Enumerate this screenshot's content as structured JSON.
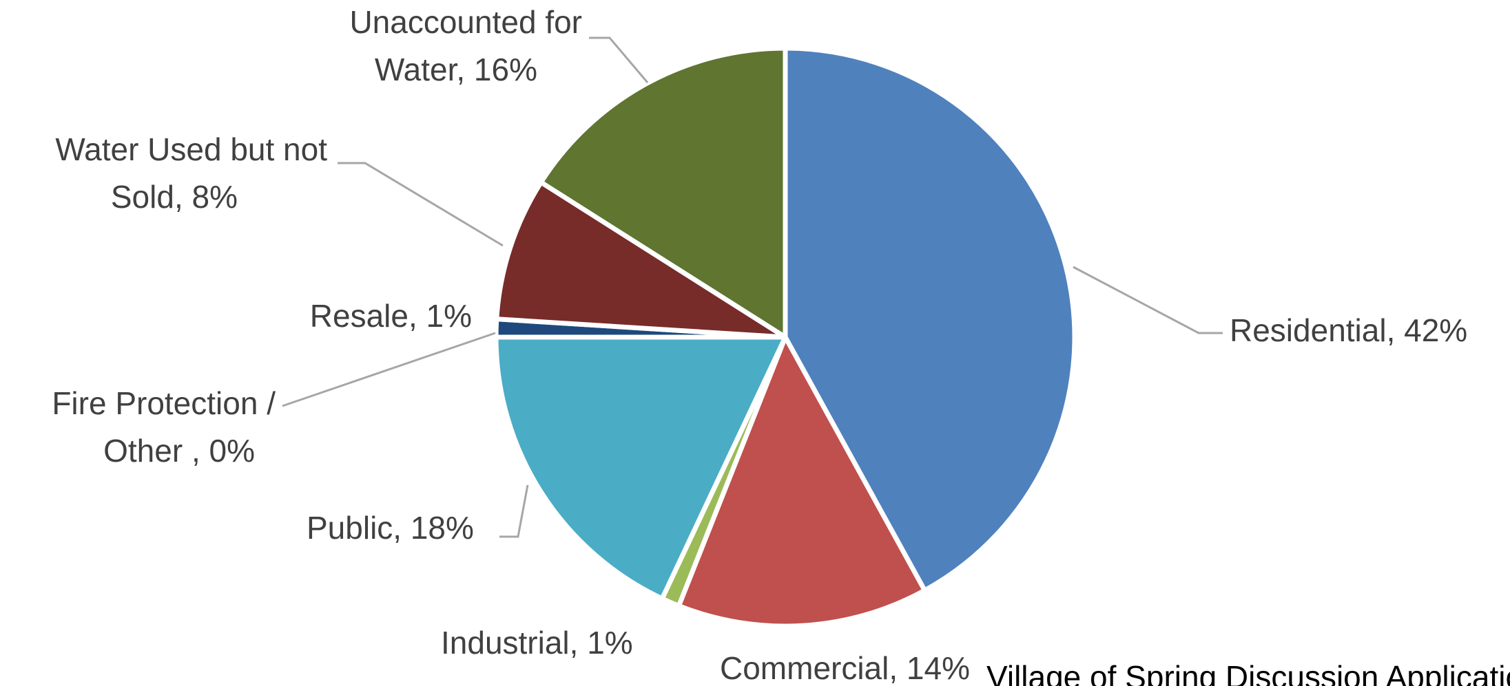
{
  "chart_data": {
    "type": "pie",
    "title": "",
    "categories": [
      "Residential",
      "Commercial",
      "Industrial",
      "Public",
      "Fire Protection / Other",
      "Resale",
      "Water Used but not Sold",
      "Unaccounted for Water"
    ],
    "values": [
      42,
      14,
      1,
      18,
      0,
      1,
      8,
      16
    ],
    "unit": "%",
    "data_labels": [
      [
        "Residential, 42%"
      ],
      [
        "Commercial, 14%"
      ],
      [
        "Industrial, 1%"
      ],
      [
        "Public, 18%"
      ],
      [
        "Fire Protection /",
        "Other , 0%"
      ],
      [
        "Resale, 1%"
      ],
      [
        "Water Used but not",
        "Sold, 8%"
      ],
      [
        "Unaccounted for",
        "Water, 16%"
      ]
    ],
    "colors": [
      "#4f81bd",
      "#c0504d",
      "#9bbb59",
      "#4bacc6",
      "#f79646",
      "#1f497d",
      "#772c2a",
      "#5f7530"
    ],
    "legend": "none",
    "start_angle_deg": 0,
    "direction": "clockwise"
  },
  "footer_text": "Village of Spring Discussion Application"
}
